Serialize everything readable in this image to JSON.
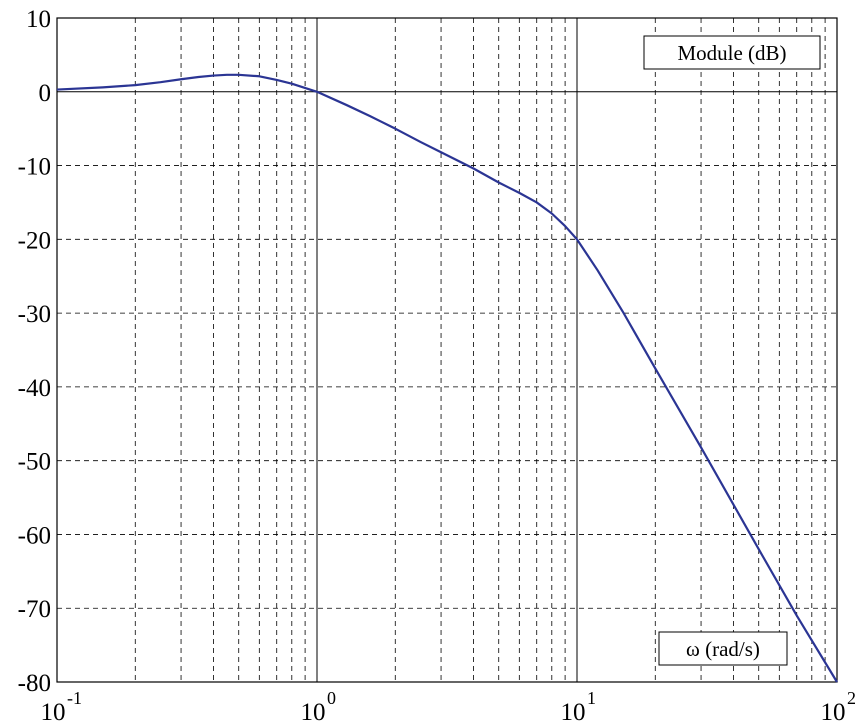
{
  "chart_data": {
    "type": "line",
    "title": "",
    "xscale": "log",
    "xlim": [
      0.1,
      100
    ],
    "ylim": [
      -80,
      10
    ],
    "grid": true,
    "grid_style": "dashed",
    "y_ticks": [
      "10",
      "0",
      "-10",
      "-20",
      "-30",
      "-40",
      "-50",
      "-60",
      "-70",
      "-80"
    ],
    "y_tick_values": [
      10,
      0,
      -10,
      -20,
      -30,
      -40,
      -50,
      -60,
      -70,
      -80
    ],
    "x_ticks": [
      {
        "value": 0.1,
        "base": "10",
        "exp": "-1"
      },
      {
        "value": 1,
        "base": "10",
        "exp": "0"
      },
      {
        "value": 10,
        "base": "10",
        "exp": "1"
      },
      {
        "value": 100,
        "base": "10",
        "exp": "2"
      }
    ],
    "ylabel_box": "Module (dB)",
    "xlabel_box": "ω (rad/s)",
    "line_color": "#2b3594",
    "series": [
      {
        "x": [
          0.1,
          0.15,
          0.2,
          0.25,
          0.3,
          0.35,
          0.4,
          0.45,
          0.5,
          0.6,
          0.7,
          0.8,
          1.0,
          1.3,
          1.6,
          2,
          2.5,
          3,
          4,
          5,
          6,
          7,
          8,
          9,
          10,
          12,
          15,
          20,
          30,
          50,
          70,
          100
        ],
        "y": [
          0.3,
          0.6,
          0.9,
          1.3,
          1.7,
          2.0,
          2.2,
          2.3,
          2.3,
          2.1,
          1.6,
          1.1,
          0,
          -1.8,
          -3.3,
          -5,
          -6.8,
          -8.2,
          -10.4,
          -12.3,
          -13.7,
          -15,
          -16.5,
          -18.2,
          -20,
          -24.2,
          -29.8,
          -37.5,
          -48.2,
          -62,
          -71,
          -80
        ]
      }
    ]
  }
}
